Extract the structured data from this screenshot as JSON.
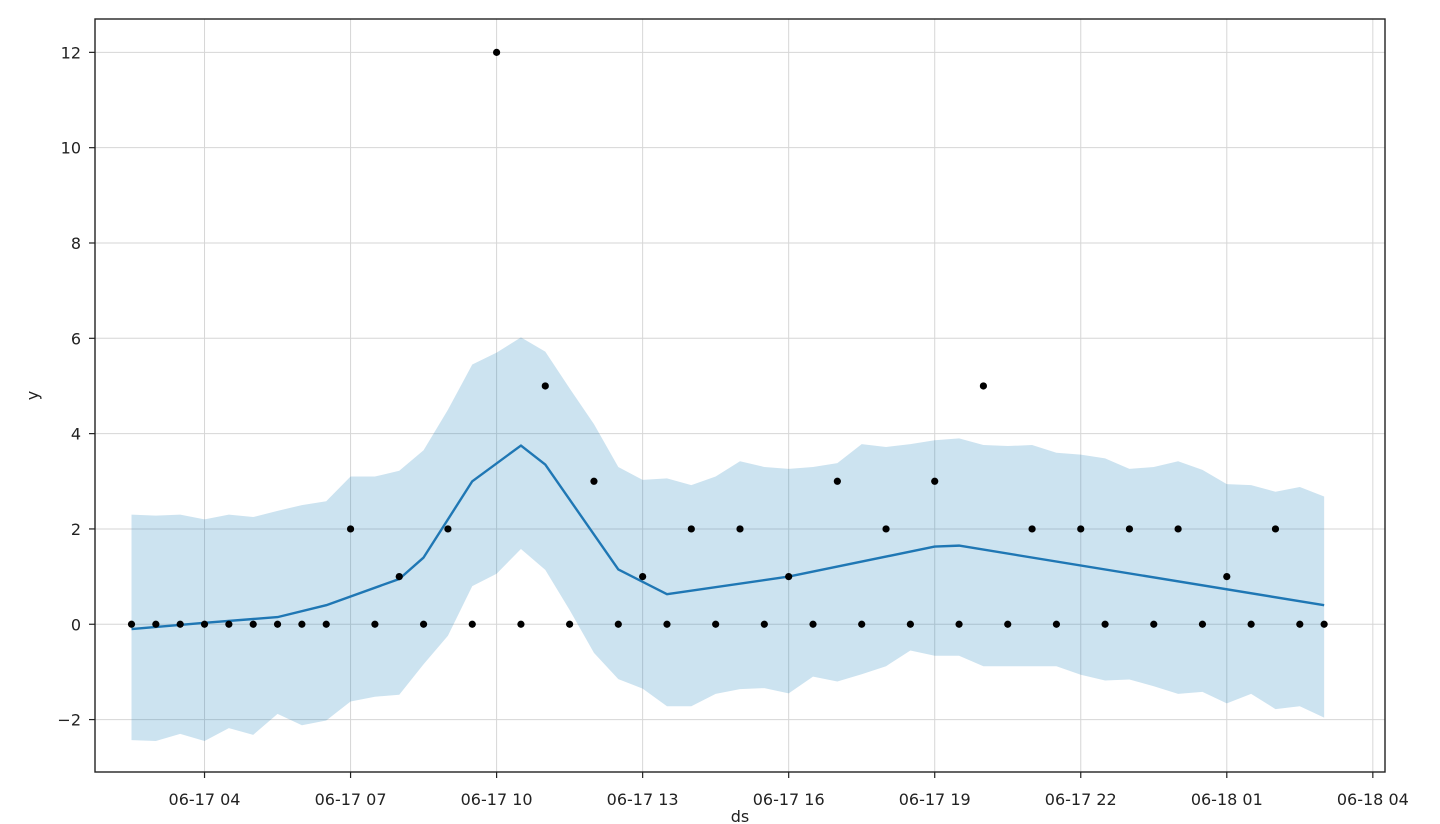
{
  "chart_data": {
    "type": "line",
    "title": "",
    "xlabel": "ds",
    "ylabel": "y",
    "grid": true,
    "legend": "none",
    "x_unit": "datetime",
    "xlim": [
      "2017-06-17T01:45",
      "2017-06-18T04:15"
    ],
    "ylim": [
      -3.1,
      12.7
    ],
    "x_ticks": [
      {
        "value": "2017-06-17T04:00",
        "label": "06-17 04"
      },
      {
        "value": "2017-06-17T07:00",
        "label": "06-17 07"
      },
      {
        "value": "2017-06-17T10:00",
        "label": "06-17 10"
      },
      {
        "value": "2017-06-17T13:00",
        "label": "06-17 13"
      },
      {
        "value": "2017-06-17T16:00",
        "label": "06-17 16"
      },
      {
        "value": "2017-06-17T19:00",
        "label": "06-17 19"
      },
      {
        "value": "2017-06-17T22:00",
        "label": "06-17 22"
      },
      {
        "value": "2017-06-18T01:00",
        "label": "06-18 01"
      },
      {
        "value": "2017-06-18T04:00",
        "label": "06-18 04"
      }
    ],
    "y_ticks": [
      {
        "value": -2,
        "label": "−2"
      },
      {
        "value": 0,
        "label": "0"
      },
      {
        "value": 2,
        "label": "2"
      },
      {
        "value": 4,
        "label": "4"
      },
      {
        "value": 6,
        "label": "6"
      },
      {
        "value": 8,
        "label": "8"
      },
      {
        "value": 10,
        "label": "10"
      },
      {
        "value": 12,
        "label": "12"
      }
    ],
    "colors": {
      "forecast_line": "#1f77b4",
      "uncertainty_band": "#0072b2",
      "observed_points": "#000000",
      "grid": "#d6d6d6",
      "axes": "#222222"
    },
    "observed": {
      "x": [
        "2017-06-17T02:30",
        "2017-06-17T03:00",
        "2017-06-17T03:30",
        "2017-06-17T04:00",
        "2017-06-17T04:30",
        "2017-06-17T05:00",
        "2017-06-17T05:30",
        "2017-06-17T06:00",
        "2017-06-17T06:30",
        "2017-06-17T07:00",
        "2017-06-17T07:30",
        "2017-06-17T08:00",
        "2017-06-17T08:30",
        "2017-06-17T09:00",
        "2017-06-17T09:30",
        "2017-06-17T10:00",
        "2017-06-17T10:30",
        "2017-06-17T11:00",
        "2017-06-17T11:30",
        "2017-06-17T12:00",
        "2017-06-17T12:30",
        "2017-06-17T13:00",
        "2017-06-17T13:30",
        "2017-06-17T14:00",
        "2017-06-17T14:30",
        "2017-06-17T15:00",
        "2017-06-17T15:30",
        "2017-06-17T16:00",
        "2017-06-17T16:30",
        "2017-06-17T17:00",
        "2017-06-17T17:30",
        "2017-06-17T18:00",
        "2017-06-17T18:30",
        "2017-06-17T19:00",
        "2017-06-17T19:30",
        "2017-06-17T20:00",
        "2017-06-17T20:30",
        "2017-06-17T21:00",
        "2017-06-17T21:30",
        "2017-06-17T22:00",
        "2017-06-17T22:30",
        "2017-06-17T23:00",
        "2017-06-17T23:30",
        "2017-06-18T00:00",
        "2017-06-18T00:30",
        "2017-06-18T01:00",
        "2017-06-18T01:30",
        "2017-06-18T02:00",
        "2017-06-18T02:30",
        "2017-06-18T03:00"
      ],
      "y": [
        0,
        0,
        0,
        0,
        0,
        0,
        0,
        0,
        0,
        2,
        0,
        1,
        0,
        2,
        0,
        12,
        0,
        5,
        0,
        3,
        0,
        1,
        0,
        2,
        0,
        2,
        0,
        1,
        0,
        3,
        0,
        2,
        0,
        3,
        0,
        5,
        0,
        2,
        0,
        2,
        0,
        2,
        0,
        2,
        0,
        1,
        0,
        2,
        0,
        0
      ]
    },
    "forecast": {
      "x": [
        "2017-06-17T02:30",
        "2017-06-17T04:00",
        "2017-06-17T05:30",
        "2017-06-17T06:30",
        "2017-06-17T08:00",
        "2017-06-17T08:30",
        "2017-06-17T09:30",
        "2017-06-17T10:30",
        "2017-06-17T11:00",
        "2017-06-17T12:30",
        "2017-06-17T13:30",
        "2017-06-17T16:00",
        "2017-06-17T19:00",
        "2017-06-17T19:30",
        "2017-06-18T03:00"
      ],
      "yhat": [
        -0.1,
        0.03,
        0.15,
        0.4,
        0.95,
        1.4,
        3.0,
        3.75,
        3.35,
        1.15,
        0.63,
        1.0,
        1.63,
        1.65,
        0.4
      ]
    },
    "uncertainty": {
      "x": [
        "2017-06-17T02:30",
        "2017-06-17T03:00",
        "2017-06-17T03:30",
        "2017-06-17T04:00",
        "2017-06-17T04:30",
        "2017-06-17T05:00",
        "2017-06-17T05:30",
        "2017-06-17T06:00",
        "2017-06-17T06:30",
        "2017-06-17T07:00",
        "2017-06-17T07:30",
        "2017-06-17T08:00",
        "2017-06-17T08:30",
        "2017-06-17T09:00",
        "2017-06-17T09:30",
        "2017-06-17T10:00",
        "2017-06-17T10:30",
        "2017-06-17T11:00",
        "2017-06-17T11:30",
        "2017-06-17T12:00",
        "2017-06-17T12:30",
        "2017-06-17T13:00",
        "2017-06-17T13:30",
        "2017-06-17T14:00",
        "2017-06-17T14:30",
        "2017-06-17T15:00",
        "2017-06-17T15:30",
        "2017-06-17T16:00",
        "2017-06-17T16:30",
        "2017-06-17T17:00",
        "2017-06-17T17:30",
        "2017-06-17T18:00",
        "2017-06-17T18:30",
        "2017-06-17T19:00",
        "2017-06-17T19:30",
        "2017-06-17T20:00",
        "2017-06-17T20:30",
        "2017-06-17T21:00",
        "2017-06-17T21:30",
        "2017-06-17T22:00",
        "2017-06-17T22:30",
        "2017-06-17T23:00",
        "2017-06-17T23:30",
        "2017-06-18T00:00",
        "2017-06-18T00:30",
        "2017-06-18T01:00",
        "2017-06-18T01:30",
        "2017-06-18T02:00",
        "2017-06-18T02:30",
        "2017-06-18T03:00"
      ],
      "upper": [
        2.3,
        2.28,
        2.3,
        2.2,
        2.3,
        2.25,
        2.38,
        2.5,
        2.58,
        3.1,
        3.1,
        3.22,
        3.65,
        4.5,
        5.45,
        5.7,
        6.02,
        5.72,
        4.95,
        4.2,
        3.3,
        3.03,
        3.06,
        2.92,
        3.1,
        3.42,
        3.3,
        3.26,
        3.3,
        3.38,
        3.78,
        3.72,
        3.78,
        3.86,
        3.9,
        3.76,
        3.74,
        3.76,
        3.6,
        3.56,
        3.48,
        3.26,
        3.3,
        3.42,
        3.24,
        2.94,
        2.92,
        2.78,
        2.88,
        2.68
      ],
      "lower": [
        -2.43,
        -2.45,
        -2.3,
        -2.45,
        -2.18,
        -2.32,
        -1.88,
        -2.12,
        -2.02,
        -1.62,
        -1.52,
        -1.48,
        -0.84,
        -0.24,
        0.8,
        1.06,
        1.58,
        1.14,
        0.3,
        -0.6,
        -1.15,
        -1.35,
        -1.72,
        -1.72,
        -1.46,
        -1.36,
        -1.34,
        -1.45,
        -1.1,
        -1.2,
        -1.05,
        -0.88,
        -0.55,
        -0.66,
        -0.66,
        -0.88,
        -0.88,
        -0.88,
        -0.88,
        -1.06,
        -1.18,
        -1.16,
        -1.3,
        -1.46,
        -1.42,
        -1.66,
        -1.46,
        -1.78,
        -1.72,
        -1.96
      ]
    }
  }
}
